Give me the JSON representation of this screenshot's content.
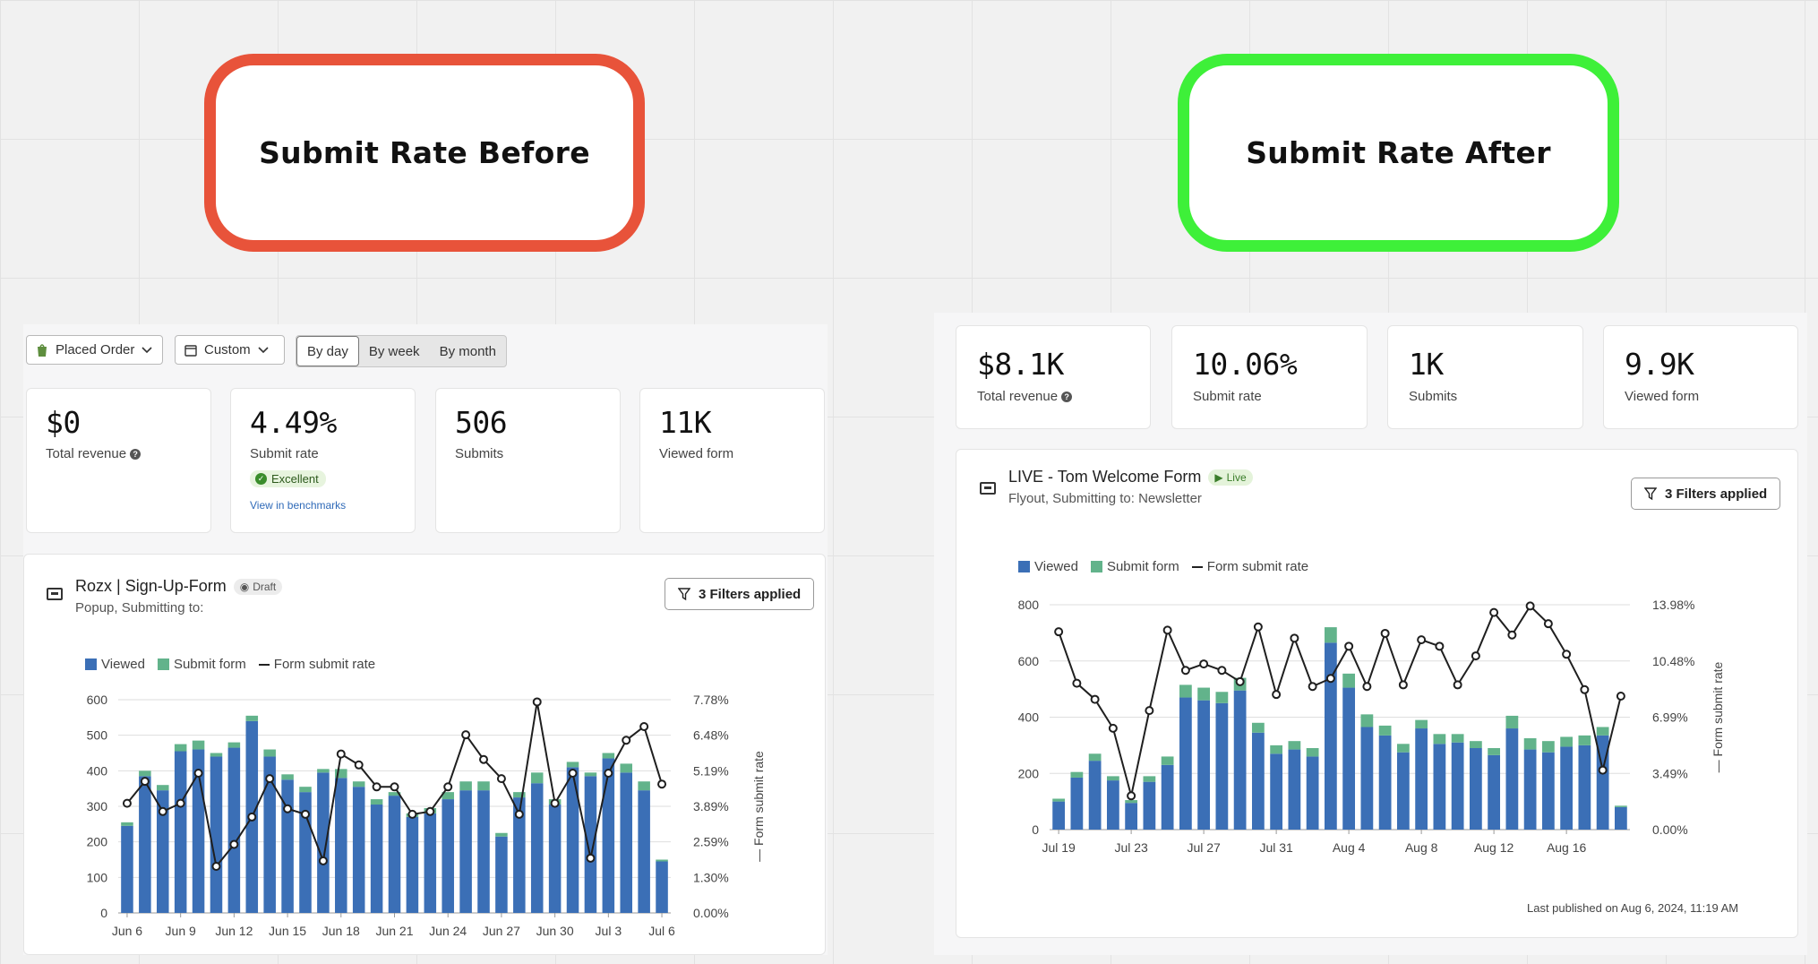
{
  "labels": {
    "before": "Submit Rate Before",
    "after": "Submit Rate After"
  },
  "colors": {
    "viewed": "#3b6fb6",
    "submit": "#62b38b",
    "line": "#1f1f1f",
    "before_border": "#e8533a",
    "after_border": "#3ef039"
  },
  "before": {
    "controls": {
      "event": "Placed Order",
      "date": "Custom",
      "granularity": [
        "By day",
        "By week",
        "By month"
      ],
      "selected": "By day"
    },
    "metrics": [
      {
        "value": "$0",
        "label": "Total revenue",
        "help": "?"
      },
      {
        "value": "4.49%",
        "label": "Submit rate",
        "badge": "Excellent",
        "link": "View in benchmarks"
      },
      {
        "value": "506",
        "label": "Submits"
      },
      {
        "value": "11K",
        "label": "Viewed form"
      }
    ],
    "form": {
      "title": "Rozx | Sign-Up-Form",
      "status": "Draft",
      "subtitle": "Popup, Submitting to:",
      "filters": "3 Filters applied"
    },
    "legend": {
      "viewed": "Viewed",
      "submit": "Submit form",
      "rate": "Form submit rate"
    }
  },
  "after": {
    "metrics": [
      {
        "value": "$8.1K",
        "label": "Total revenue",
        "help": "?"
      },
      {
        "value": "10.06%",
        "label": "Submit rate"
      },
      {
        "value": "1K",
        "label": "Submits"
      },
      {
        "value": "9.9K",
        "label": "Viewed form"
      }
    ],
    "form": {
      "title": "LIVE - Tom Welcome Form",
      "status": "Live",
      "subtitle": "Flyout, Submitting to: Newsletter",
      "filters": "3 Filters applied"
    },
    "legend": {
      "viewed": "Viewed",
      "submit": "Submit form",
      "rate": "Form submit rate"
    },
    "published": "Last published on Aug 6, 2024, 11:19 AM"
  },
  "chart_data": [
    {
      "type": "bar",
      "title": "Rozx | Sign-Up-Form",
      "ylabel": "Form submit rate",
      "ylim": [
        0,
        600
      ],
      "yticks": [
        "600",
        "500",
        "400",
        "300",
        "200",
        "100",
        "0"
      ],
      "y2ticks": [
        "7.78%",
        "6.48%",
        "5.19%",
        "3.89%",
        "2.59%",
        "1.30%",
        "0.00%"
      ],
      "y2lim": [
        0,
        7.78
      ],
      "xticks": [
        {
          "i": 0,
          "label": "Jun 6"
        },
        {
          "i": 3,
          "label": "Jun 9"
        },
        {
          "i": 6,
          "label": "Jun 12"
        },
        {
          "i": 9,
          "label": "Jun 15"
        },
        {
          "i": 12,
          "label": "Jun 18"
        },
        {
          "i": 15,
          "label": "Jun 21"
        },
        {
          "i": 18,
          "label": "Jun 24"
        },
        {
          "i": 21,
          "label": "Jun 27"
        },
        {
          "i": 24,
          "label": "Jun 30"
        },
        {
          "i": 27,
          "label": "Jul 3"
        },
        {
          "i": 30,
          "label": "Jul 6"
        }
      ],
      "series": [
        {
          "name": "Viewed",
          "values": [
            245,
            385,
            345,
            455,
            460,
            440,
            465,
            540,
            440,
            375,
            340,
            395,
            380,
            355,
            305,
            330,
            270,
            280,
            320,
            345,
            345,
            215,
            325,
            365,
            305,
            410,
            385,
            435,
            395,
            345,
            145
          ]
        },
        {
          "name": "Submit form",
          "values": [
            10,
            15,
            15,
            20,
            25,
            10,
            15,
            15,
            20,
            15,
            15,
            10,
            25,
            15,
            15,
            10,
            10,
            15,
            20,
            25,
            25,
            10,
            15,
            30,
            15,
            15,
            10,
            15,
            25,
            25,
            5
          ]
        },
        {
          "name": "Form submit rate",
          "values": [
            4.0,
            4.8,
            3.7,
            4.0,
            5.1,
            1.7,
            2.5,
            3.5,
            4.9,
            3.8,
            3.6,
            1.9,
            5.8,
            5.4,
            4.6,
            4.6,
            3.6,
            3.7,
            4.6,
            6.5,
            5.6,
            4.9,
            3.6,
            7.7,
            4.0,
            5.1,
            2.0,
            5.1,
            6.3,
            6.8,
            4.7
          ]
        }
      ]
    },
    {
      "type": "bar",
      "title": "LIVE - Tom Welcome Form",
      "ylabel": "Form submit rate",
      "ylim": [
        0,
        800
      ],
      "yticks": [
        "800",
        "600",
        "400",
        "200",
        "0"
      ],
      "y2ticks": [
        "13.98%",
        "10.48%",
        "6.99%",
        "3.49%",
        "0.00%"
      ],
      "y2lim": [
        0,
        13.98
      ],
      "xticks": [
        {
          "i": 0,
          "label": "Jul 19"
        },
        {
          "i": 4,
          "label": "Jul 23"
        },
        {
          "i": 8,
          "label": "Jul 27"
        },
        {
          "i": 12,
          "label": "Jul 31"
        },
        {
          "i": 16,
          "label": "Aug 4"
        },
        {
          "i": 20,
          "label": "Aug 8"
        },
        {
          "i": 24,
          "label": "Aug 12"
        },
        {
          "i": 28,
          "label": "Aug 16"
        }
      ],
      "series": [
        {
          "name": "Viewed",
          "values": [
            100,
            185,
            245,
            175,
            95,
            170,
            230,
            470,
            460,
            450,
            495,
            345,
            270,
            285,
            260,
            665,
            505,
            365,
            335,
            275,
            360,
            305,
            310,
            290,
            265,
            360,
            285,
            275,
            295,
            300,
            335,
            80
          ]
        },
        {
          "name": "Submit form",
          "values": [
            10,
            20,
            25,
            15,
            10,
            20,
            30,
            45,
            45,
            40,
            45,
            35,
            30,
            30,
            30,
            55,
            50,
            45,
            35,
            30,
            30,
            35,
            30,
            25,
            25,
            45,
            40,
            40,
            35,
            35,
            30,
            5
          ]
        },
        {
          "name": "Form submit rate",
          "values": [
            12.3,
            9.1,
            8.1,
            6.3,
            2.1,
            7.4,
            12.4,
            9.9,
            10.3,
            9.9,
            9.2,
            12.6,
            8.4,
            11.9,
            8.9,
            9.4,
            11.4,
            8.9,
            12.2,
            9.0,
            11.8,
            11.4,
            9.0,
            10.8,
            13.5,
            12.1,
            13.9,
            12.8,
            10.9,
            8.7,
            3.7,
            8.3
          ]
        }
      ]
    }
  ]
}
